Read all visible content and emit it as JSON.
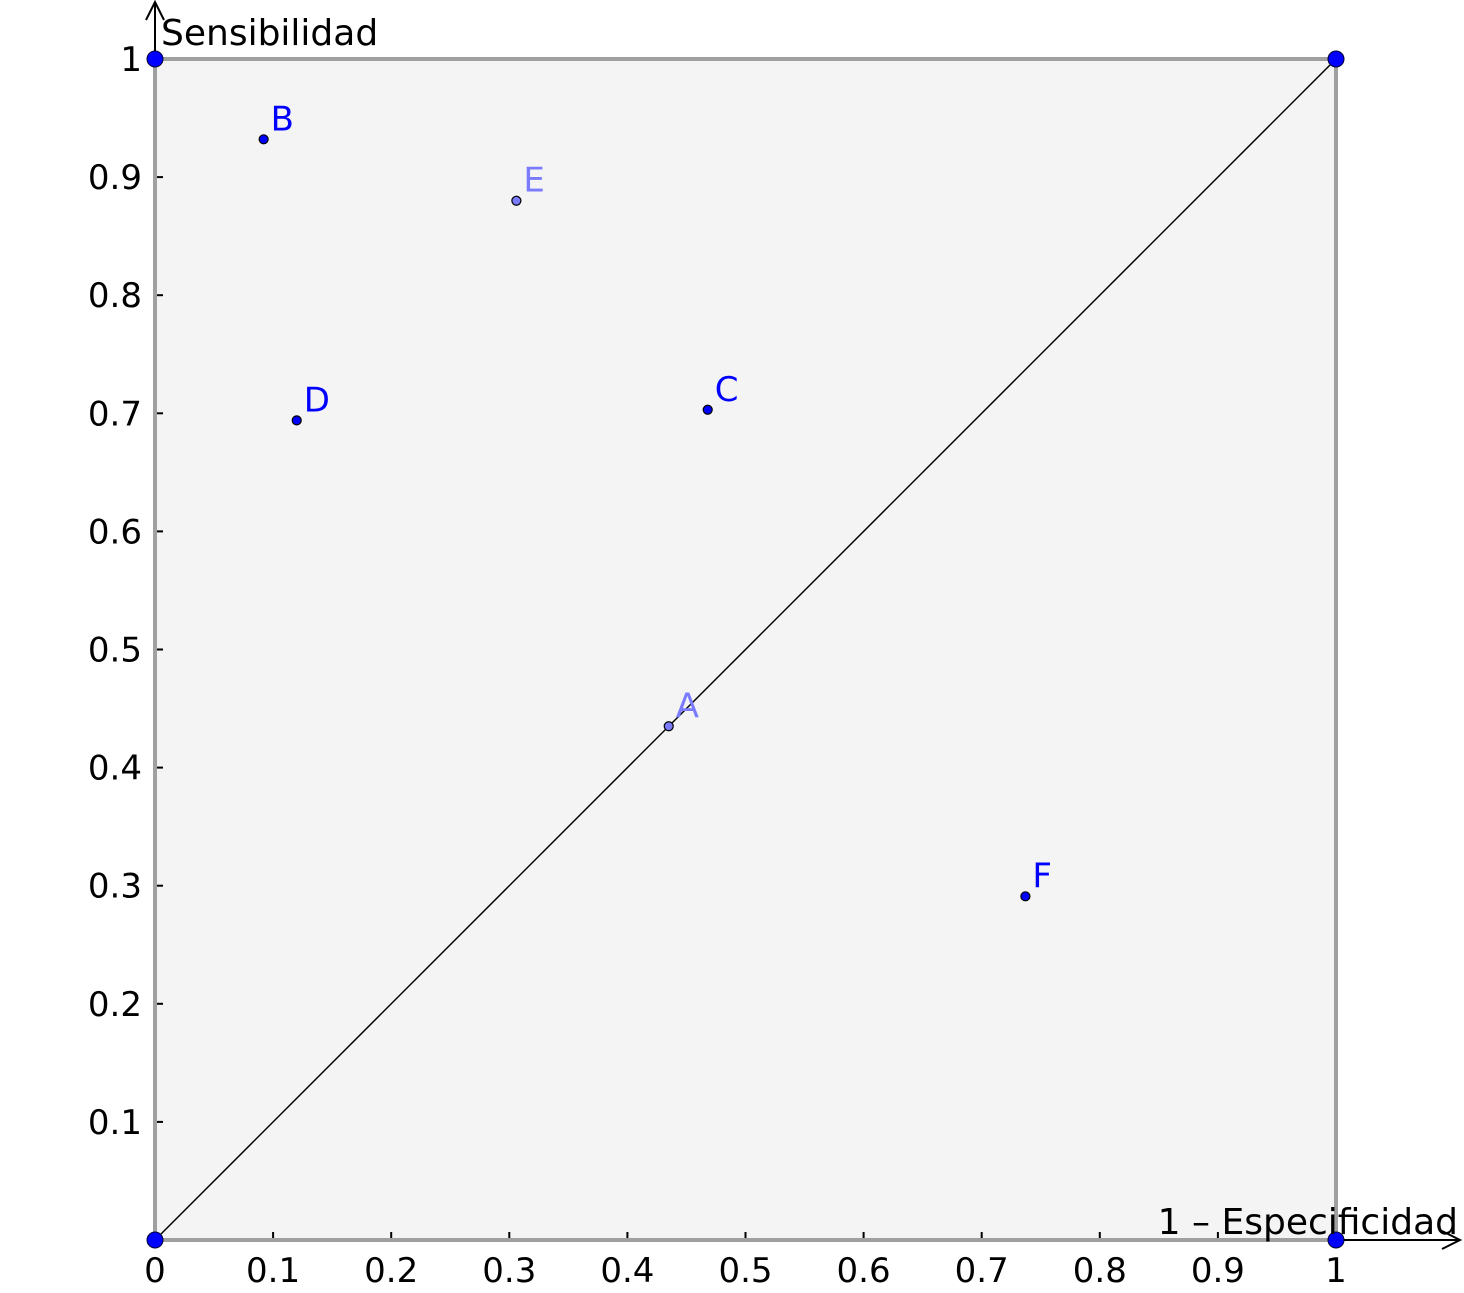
{
  "chart_data": {
    "type": "scatter",
    "title": "",
    "xlabel": "1 – Especificidad",
    "ylabel": "Sensibilidad",
    "xlim": [
      0,
      1
    ],
    "ylim": [
      0,
      1
    ],
    "x_ticks": [
      "0",
      "0.1",
      "0.2",
      "0.3",
      "0.4",
      "0.5",
      "0.6",
      "0.7",
      "0.8",
      "0.9",
      "1"
    ],
    "y_ticks": [
      "0.1",
      "0.2",
      "0.3",
      "0.4",
      "0.5",
      "0.6",
      "0.7",
      "0.8",
      "0.9",
      "1"
    ],
    "grid": false,
    "background_fill": "#f4f4f4",
    "square_border_color": "#a0a0a0",
    "diagonal": {
      "from": [
        0,
        0
      ],
      "to": [
        1,
        1
      ],
      "color": "#000000"
    },
    "corner_points": [
      {
        "x": 0,
        "y": 0
      },
      {
        "x": 1,
        "y": 0
      },
      {
        "x": 0,
        "y": 1
      },
      {
        "x": 1,
        "y": 1
      }
    ],
    "corner_color": "#0000ff",
    "points": [
      {
        "label": "A",
        "x": 0.435,
        "y": 0.435,
        "color": "#7b7bff"
      },
      {
        "label": "B",
        "x": 0.092,
        "y": 0.932,
        "color": "#0000ff"
      },
      {
        "label": "C",
        "x": 0.468,
        "y": 0.703,
        "color": "#0000ff"
      },
      {
        "label": "D",
        "x": 0.12,
        "y": 0.694,
        "color": "#0000ff"
      },
      {
        "label": "E",
        "x": 0.306,
        "y": 0.88,
        "color": "#7b7bff"
      },
      {
        "label": "F",
        "x": 0.737,
        "y": 0.291,
        "color": "#0000ff"
      }
    ]
  }
}
